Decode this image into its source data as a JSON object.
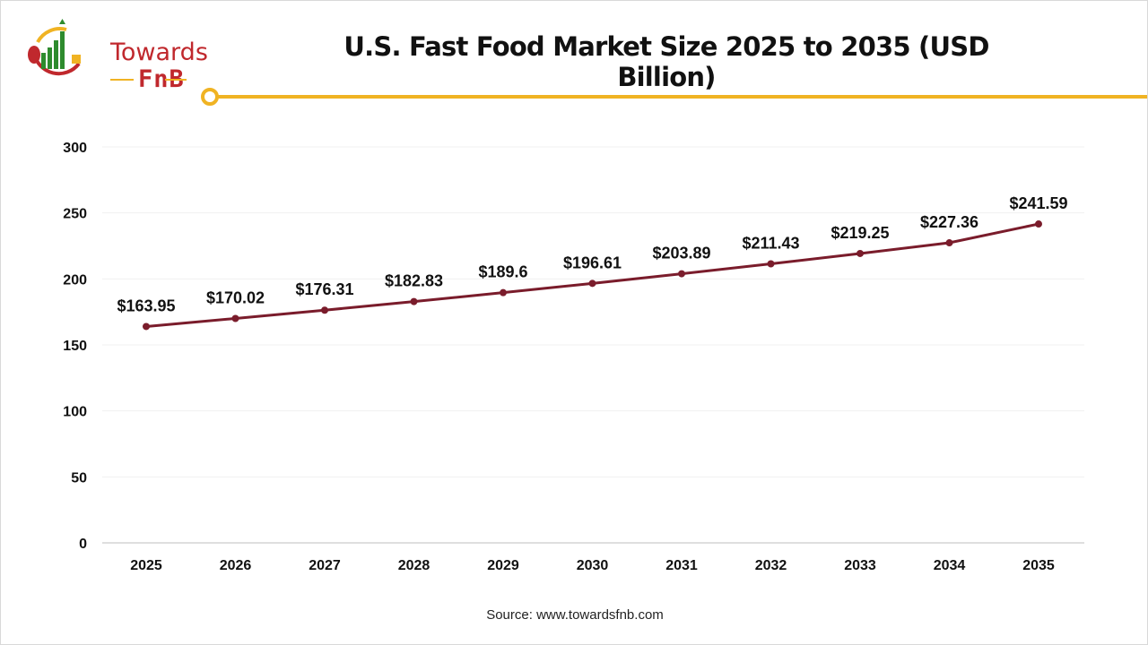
{
  "logo": {
    "line1": "Towards",
    "line2": "FnB"
  },
  "source": "Source: www.towardsfnb.com",
  "colors": {
    "line": "#7a1c2b",
    "accent": "#f0b323",
    "logo_red": "#c0282d",
    "logo_green": "#2e8b2e"
  },
  "chart_data": {
    "type": "line",
    "title": "U.S. Fast Food Market Size 2025 to 2035 (USD Billion)",
    "categories": [
      "2025",
      "2026",
      "2027",
      "2028",
      "2029",
      "2030",
      "2031",
      "2032",
      "2033",
      "2034",
      "2035"
    ],
    "values": [
      163.95,
      170.02,
      176.31,
      182.83,
      189.6,
      196.61,
      203.89,
      211.43,
      219.25,
      227.36,
      241.59
    ],
    "data_labels": [
      "$163.95",
      "$170.02",
      "$176.31",
      "$182.83",
      "$189.6",
      "$196.61",
      "$203.89",
      "$211.43",
      "$219.25",
      "$227.36",
      "$241.59"
    ],
    "ylim": [
      0,
      300
    ],
    "yticks": [
      "0",
      "50",
      "100",
      "150",
      "200",
      "250",
      "300"
    ],
    "grid": true,
    "legend": "none"
  }
}
